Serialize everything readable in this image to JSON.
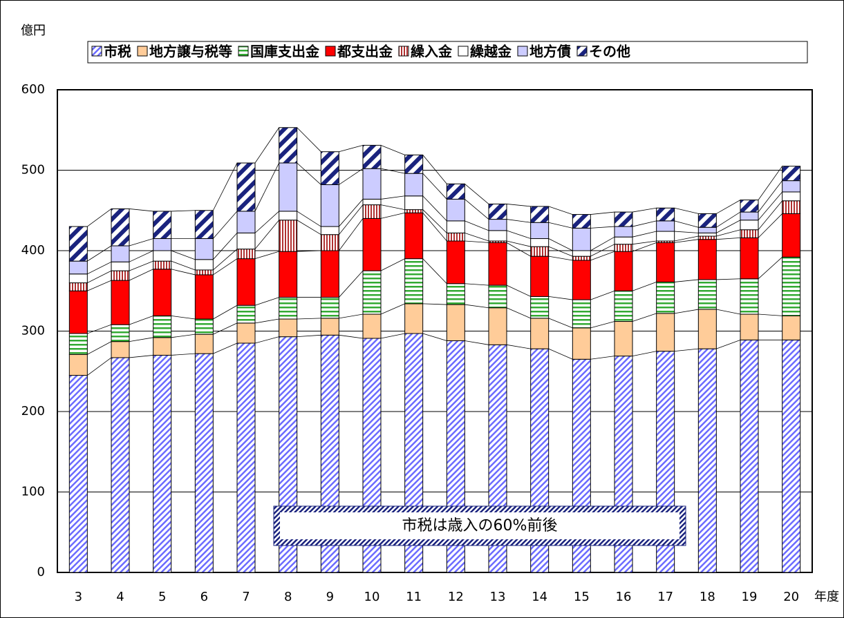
{
  "chart_data": {
    "type": "stacked_bar",
    "y_label": "億円",
    "x_label": "年度",
    "annotation": "市税は歳入の60%前後",
    "categories": [
      "3",
      "4",
      "5",
      "6",
      "7",
      "8",
      "9",
      "10",
      "11",
      "12",
      "13",
      "14",
      "15",
      "16",
      "17",
      "18",
      "19",
      "20"
    ],
    "ylim": [
      0,
      600
    ],
    "yticks": [
      0,
      100,
      200,
      300,
      400,
      500,
      600
    ],
    "grid": true,
    "series": [
      {
        "name": "市税",
        "color": "#6b6bff",
        "pattern": "diagonal",
        "values": [
          245,
          267,
          270,
          272,
          285,
          293,
          295,
          291,
          297,
          288,
          283,
          278,
          265,
          269,
          275,
          278,
          289,
          289
        ]
      },
      {
        "name": "地方譲与税等",
        "color": "#ffcc99",
        "pattern": "solid",
        "values": [
          26,
          20,
          22,
          24,
          25,
          22,
          21,
          30,
          37,
          45,
          46,
          38,
          39,
          43,
          47,
          49,
          32,
          30
        ]
      },
      {
        "name": "国庫支出金",
        "color": "#33aa33",
        "pattern": "horizontal",
        "values": [
          26,
          21,
          27,
          19,
          22,
          27,
          26,
          54,
          56,
          26,
          28,
          27,
          35,
          38,
          39,
          37,
          44,
          73
        ]
      },
      {
        "name": "都支出金",
        "color": "#ff0000",
        "pattern": "solid",
        "values": [
          53,
          55,
          58,
          55,
          58,
          57,
          58,
          65,
          57,
          53,
          53,
          50,
          49,
          49,
          49,
          50,
          51,
          54
        ]
      },
      {
        "name": "繰入金",
        "color": "#b03030",
        "pattern": "vertical",
        "values": [
          10,
          12,
          10,
          6,
          12,
          39,
          20,
          17,
          4,
          10,
          2,
          12,
          5,
          9,
          2,
          4,
          10,
          16
        ]
      },
      {
        "name": "繰越金",
        "color": "#ffffff",
        "pattern": "solid",
        "values": [
          11,
          11,
          13,
          13,
          20,
          11,
          10,
          7,
          17,
          15,
          13,
          10,
          7,
          9,
          12,
          4,
          12,
          11
        ]
      },
      {
        "name": "地方債",
        "color": "#ccccff",
        "pattern": "solid",
        "values": [
          16,
          20,
          15,
          26,
          27,
          60,
          52,
          38,
          28,
          27,
          14,
          20,
          28,
          13,
          13,
          7,
          10,
          14
        ]
      },
      {
        "name": "その他",
        "color": "#1a237e",
        "pattern": "wide-diagonal",
        "values": [
          43,
          46,
          34,
          35,
          60,
          44,
          41,
          29,
          23,
          19,
          19,
          20,
          17,
          18,
          16,
          17,
          15,
          18
        ]
      }
    ]
  }
}
